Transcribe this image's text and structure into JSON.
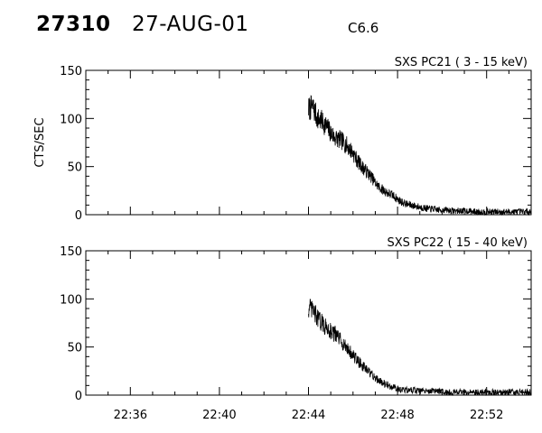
{
  "header": {
    "id": "27310",
    "date": "27-AUG-01",
    "class": "C6.6"
  },
  "chart_data": [
    {
      "type": "line",
      "title": "SXS PC21  (  3 - 15 keV)",
      "ylabel": "CTS/SEC",
      "xlabel": "",
      "xlim": [
        "22:34",
        "22:54"
      ],
      "ylim": [
        0,
        150
      ],
      "yticks": [
        0,
        50,
        100,
        150
      ],
      "yticklabels": [
        "0",
        "50",
        "100",
        "150"
      ],
      "xticks": [
        "22:36",
        "22:40",
        "22:44",
        "22:48",
        "22:52"
      ],
      "xticklabels": [],
      "series": [
        {
          "x": [
            "22:44:00",
            "22:44:12",
            "22:44:24",
            "22:44:36",
            "22:44:48",
            "22:45:00",
            "22:45:12",
            "22:45:24",
            "22:45:36",
            "22:45:48",
            "22:46:00",
            "22:46:12",
            "22:46:24",
            "22:46:36",
            "22:46:48",
            "22:47:00",
            "22:47:12",
            "22:47:24",
            "22:47:36",
            "22:47:48",
            "22:48:00",
            "22:48:12",
            "22:48:24",
            "22:48:36",
            "22:48:48",
            "22:49:00",
            "22:49:12",
            "22:49:24",
            "22:49:36",
            "22:49:48",
            "22:50:00",
            "22:50:12",
            "22:50:24",
            "22:50:36",
            "22:50:48",
            "22:51:00",
            "22:51:12",
            "22:51:24",
            "22:51:36",
            "22:51:48",
            "22:52:00",
            "22:52:12",
            "22:52:24",
            "22:52:36",
            "22:52:48",
            "22:53:00",
            "22:53:12",
            "22:53:24",
            "22:53:36",
            "22:53:48"
          ],
          "values": [
            110,
            112,
            100,
            97,
            92,
            85,
            80,
            78,
            75,
            70,
            64,
            56,
            50,
            45,
            40,
            33,
            28,
            25,
            22,
            20,
            16,
            13,
            11,
            10,
            9,
            8,
            7,
            6,
            6,
            5,
            5,
            5,
            4,
            4,
            4,
            4,
            4,
            3,
            3,
            3,
            3,
            3,
            3,
            3,
            3,
            3,
            3,
            3,
            3,
            3
          ]
        }
      ]
    },
    {
      "type": "line",
      "title": "SXS PC22  ( 15 - 40 keV)",
      "ylabel": "",
      "xlabel": "",
      "xlim": [
        "22:34",
        "22:54"
      ],
      "ylim": [
        0,
        150
      ],
      "yticks": [
        0,
        50,
        100,
        150
      ],
      "yticklabels": [
        "0",
        "50",
        "100",
        "150"
      ],
      "xticks": [
        "22:36",
        "22:40",
        "22:44",
        "22:48",
        "22:52"
      ],
      "xticklabels": [
        "22:36",
        "22:40",
        "22:44",
        "22:48",
        "22:52"
      ],
      "series": [
        {
          "x": [
            "22:44:00",
            "22:44:12",
            "22:44:24",
            "22:44:36",
            "22:44:48",
            "22:45:00",
            "22:45:12",
            "22:45:24",
            "22:45:36",
            "22:45:48",
            "22:46:00",
            "22:46:12",
            "22:46:24",
            "22:46:36",
            "22:46:48",
            "22:47:00",
            "22:47:12",
            "22:47:24",
            "22:47:36",
            "22:47:48",
            "22:48:00",
            "22:48:12",
            "22:48:24",
            "22:48:36",
            "22:48:48",
            "22:49:00",
            "22:49:12",
            "22:49:24",
            "22:49:36",
            "22:49:48",
            "22:50:00",
            "22:50:12",
            "22:50:24",
            "22:50:36",
            "22:50:48",
            "22:51:00",
            "22:51:12",
            "22:51:24",
            "22:51:36",
            "22:51:48",
            "22:52:00",
            "22:52:12",
            "22:52:24",
            "22:52:36",
            "22:52:48",
            "22:53:00",
            "22:53:12",
            "22:53:24",
            "22:53:36",
            "22:53:48"
          ],
          "values": [
            90,
            88,
            80,
            75,
            70,
            67,
            63,
            58,
            52,
            47,
            41,
            36,
            31,
            26,
            22,
            18,
            15,
            12,
            10,
            8,
            7,
            6,
            5,
            5,
            5,
            4,
            4,
            4,
            4,
            4,
            4,
            3,
            3,
            3,
            3,
            3,
            3,
            3,
            3,
            3,
            3,
            3,
            3,
            3,
            3,
            3,
            3,
            3,
            3,
            3
          ]
        }
      ]
    }
  ]
}
